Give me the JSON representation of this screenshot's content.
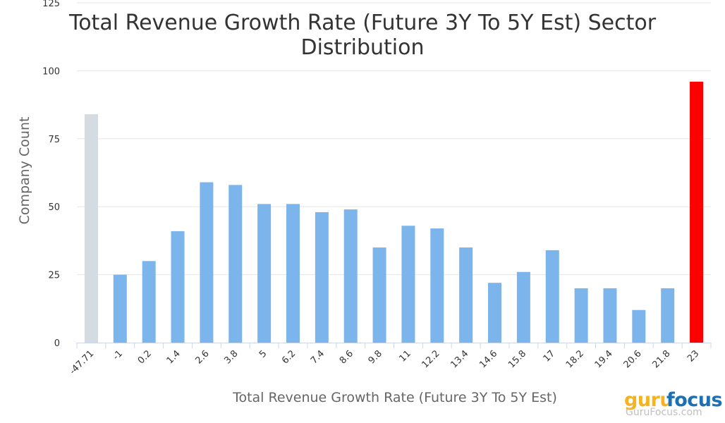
{
  "chart_data": {
    "type": "bar",
    "title": "Total Revenue Growth Rate (Future 3Y To 5Y Est) Sector Distribution",
    "xlabel": "Total Revenue Growth Rate (Future 3Y To 5Y Est)",
    "ylabel": "Company Count",
    "categories": [
      "-47.71",
      "-1",
      "0.2",
      "1.4",
      "2.6",
      "3.8",
      "5",
      "6.2",
      "7.4",
      "8.6",
      "9.8",
      "11",
      "12.2",
      "13.4",
      "14.6",
      "15.8",
      "17",
      "18.2",
      "19.4",
      "20.6",
      "21.8",
      "23"
    ],
    "values": [
      84,
      25,
      30,
      41,
      59,
      58,
      51,
      51,
      48,
      49,
      35,
      43,
      42,
      35,
      22,
      26,
      34,
      20,
      20,
      12,
      20,
      96
    ],
    "bar_colors": [
      "#d4dbe1",
      "#7cb5ec",
      "#7cb5ec",
      "#7cb5ec",
      "#7cb5ec",
      "#7cb5ec",
      "#7cb5ec",
      "#7cb5ec",
      "#7cb5ec",
      "#7cb5ec",
      "#7cb5ec",
      "#7cb5ec",
      "#7cb5ec",
      "#7cb5ec",
      "#7cb5ec",
      "#7cb5ec",
      "#7cb5ec",
      "#7cb5ec",
      "#7cb5ec",
      "#7cb5ec",
      "#7cb5ec",
      "#ff0000"
    ],
    "yticks": [
      0,
      25,
      50,
      75,
      100,
      125
    ],
    "ylim": [
      0,
      125
    ],
    "grid": true,
    "legend": "none"
  },
  "logo": {
    "guru": "guru",
    "focus": "focus",
    "url": "GuruFocus.com"
  }
}
